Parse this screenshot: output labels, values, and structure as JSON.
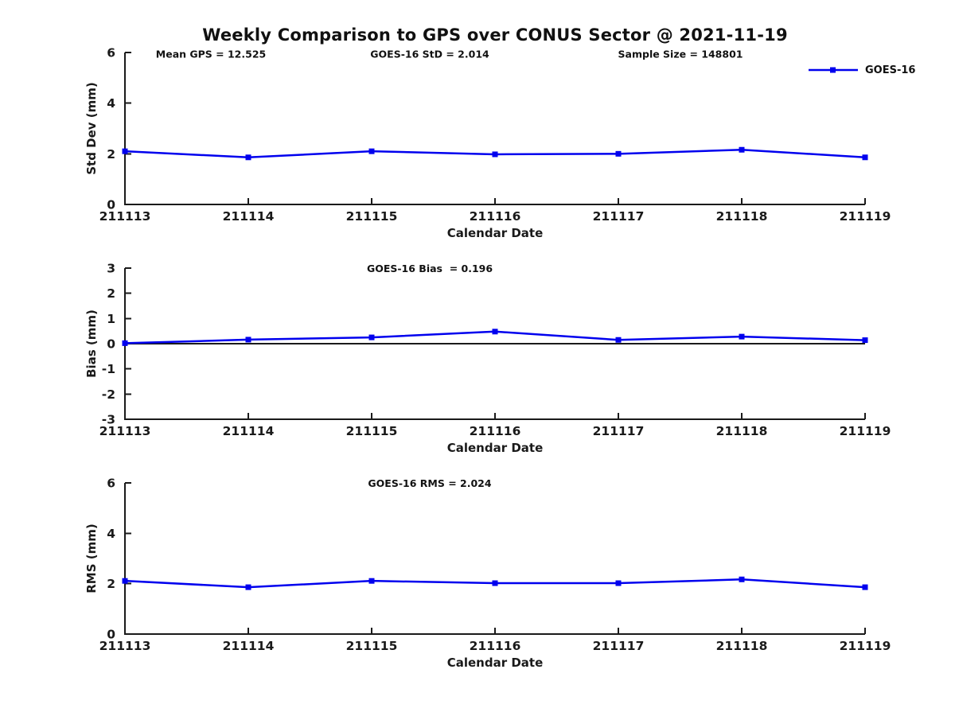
{
  "title": "Weekly Comparison to GPS over CONUS Sector @ 2021-11-19",
  "legend": {
    "label": "GOES-16",
    "position": "top-right"
  },
  "colors": {
    "line": "#0000EE",
    "axis": "#1A1A1A",
    "text": "#111111",
    "background": "#FFFFFF"
  },
  "chart_data": [
    {
      "id": "std-dev",
      "type": "line",
      "title": "",
      "annotations": [
        "Mean GPS = 12.525",
        "GOES-16 StD = 2.014",
        "Sample Size = 148801"
      ],
      "xlabel": "Calendar Date",
      "ylabel": "Std Dev (mm)",
      "categories": [
        "211113",
        "211114",
        "211115",
        "211116",
        "211117",
        "211118",
        "211119"
      ],
      "series": [
        {
          "name": "GOES-16",
          "values": [
            2.1,
            1.86,
            2.1,
            1.98,
            2.0,
            2.16,
            1.86
          ]
        }
      ],
      "ylim": [
        0,
        6
      ],
      "yticks": [
        0,
        2,
        4,
        6
      ],
      "grid": false,
      "zero_line": false,
      "legend_entries": [
        "GOES-16"
      ]
    },
    {
      "id": "bias",
      "type": "line",
      "title": "GOES-16 Bias  = 0.196",
      "annotations": [],
      "xlabel": "Calendar Date",
      "ylabel": "Bias (mm)",
      "categories": [
        "211113",
        "211114",
        "211115",
        "211116",
        "211117",
        "211118",
        "211119"
      ],
      "series": [
        {
          "name": "GOES-16",
          "values": [
            0.02,
            0.16,
            0.25,
            0.48,
            0.15,
            0.28,
            0.14
          ]
        }
      ],
      "ylim": [
        -3,
        3
      ],
      "yticks": [
        -3,
        -2,
        -1,
        0,
        1,
        2,
        3
      ],
      "grid": false,
      "zero_line": true,
      "legend_entries": [
        "GOES-16"
      ]
    },
    {
      "id": "rms",
      "type": "line",
      "title": "GOES-16 RMS = 2.024",
      "annotations": [],
      "xlabel": "Calendar Date",
      "ylabel": "RMS (mm)",
      "categories": [
        "211113",
        "211114",
        "211115",
        "211116",
        "211117",
        "211118",
        "211119"
      ],
      "series": [
        {
          "name": "GOES-16",
          "values": [
            2.11,
            1.86,
            2.11,
            2.02,
            2.02,
            2.17,
            1.86
          ]
        }
      ],
      "ylim": [
        0,
        6
      ],
      "yticks": [
        0,
        2,
        4,
        6
      ],
      "grid": false,
      "zero_line": false,
      "legend_entries": [
        "GOES-16"
      ]
    }
  ]
}
